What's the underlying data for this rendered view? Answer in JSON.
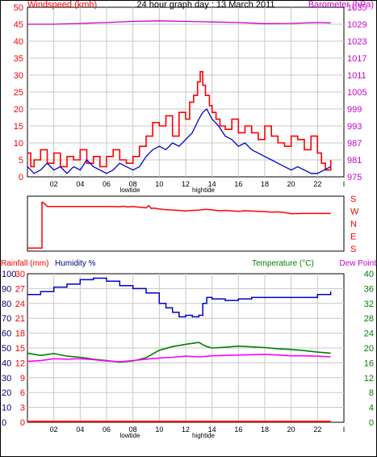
{
  "header": {
    "title": "24 hour graph day : 13 March 2011",
    "left_label": "Windspeed (kmh)",
    "right_label": "Barometer (hPa)"
  },
  "labels": {
    "lowtide": "lowtide",
    "hightide": "hightide",
    "rainfall": "Rainfall (mm)",
    "humidity": "Humidity %",
    "temperature": "Temperature (°C)",
    "dewpoint": "Dew Point"
  },
  "colors": {
    "wind": "#ff0000",
    "gust_dark": "#cc0000",
    "baro": "#cc00cc",
    "avg": "#0000cc",
    "temp": "#008000",
    "dew": "#ff00ff",
    "rain": "#ff0000",
    "humidity": "#0000cc",
    "frame": "#000000",
    "grid": "#c8c8c8",
    "hum_axis": "#000080"
  },
  "chart_data": [
    {
      "type": "line",
      "name": "wind-baro",
      "x_ticks": [
        "02",
        "04",
        "06",
        "08",
        "10",
        "12",
        "14",
        "16",
        "18",
        "20",
        "22",
        "I"
      ],
      "y_left_ticks": [
        "0",
        "5",
        "10",
        "15",
        "20",
        "25",
        "30",
        "35",
        "40",
        "45",
        "50"
      ],
      "y_left_range": [
        0,
        50
      ],
      "y_right_ticks": [
        "975",
        "981",
        "987",
        "993",
        "999",
        "1005",
        "1011",
        "1017",
        "1023",
        "1029",
        "1035"
      ],
      "y_right_range": [
        975,
        1035
      ],
      "x_range": [
        0,
        24
      ],
      "grid": true,
      "series": [
        {
          "key": "gust",
          "x": [
            0,
            0.25,
            0.5,
            1,
            1.5,
            2,
            2.5,
            3,
            3.5,
            4,
            4.5,
            5,
            5.5,
            6,
            6.5,
            7,
            7.5,
            8,
            8.5,
            9,
            9.5,
            10,
            10.5,
            11,
            11.5,
            12,
            12.3,
            12.6,
            12.9,
            13.1,
            13.3,
            13.5,
            13.8,
            14,
            14.3,
            14.6,
            15,
            15.5,
            16,
            16.5,
            17,
            17.5,
            18,
            18.5,
            19,
            19.5,
            20,
            20.5,
            21,
            21.5,
            22,
            22.3,
            22.6,
            23
          ],
          "values": [
            7,
            3,
            5,
            8,
            4,
            7,
            3,
            6,
            5,
            8,
            4,
            6,
            3,
            6,
            8,
            5,
            4,
            6,
            9,
            12,
            16,
            15,
            18,
            12,
            19,
            17,
            22,
            24,
            28,
            31,
            27,
            24,
            21,
            19,
            17,
            15,
            14,
            17,
            13,
            15,
            13,
            11,
            15,
            12,
            10,
            9,
            12,
            11,
            8,
            12,
            7,
            4,
            2,
            5
          ]
        },
        {
          "key": "average",
          "x": [
            0,
            0.5,
            1,
            1.5,
            2,
            2.5,
            3,
            3.5,
            4,
            4.5,
            5,
            5.5,
            6,
            6.5,
            7,
            7.5,
            8,
            8.5,
            9,
            9.5,
            10,
            10.5,
            11,
            11.5,
            12,
            12.5,
            13,
            13.3,
            13.6,
            14,
            14.5,
            15,
            15.5,
            16,
            16.5,
            17,
            17.5,
            18,
            18.5,
            19,
            19.5,
            20,
            20.5,
            21,
            21.5,
            22,
            22.5,
            23
          ],
          "values": [
            3,
            1,
            2,
            4,
            2,
            3,
            1,
            3,
            2,
            5,
            3,
            2,
            1,
            2,
            4,
            3,
            2,
            3,
            6,
            8,
            9,
            8,
            10,
            9,
            11,
            13,
            17,
            19,
            20,
            17,
            15,
            12,
            11,
            9,
            10,
            8,
            7,
            6,
            5,
            4,
            3,
            2,
            3,
            2,
            1,
            1,
            2,
            3
          ]
        },
        {
          "key": "barometer",
          "x": [
            0,
            2,
            4,
            6,
            8,
            10,
            12,
            14,
            16,
            18,
            20,
            22,
            23
          ],
          "values": [
            1029,
            1029,
            1029.3,
            1029.6,
            1030,
            1030.2,
            1030,
            1029.8,
            1029.6,
            1029.2,
            1029.3,
            1029.6,
            1029.5
          ]
        }
      ]
    },
    {
      "type": "line",
      "name": "wind-direction",
      "y_ticks": [
        "S",
        "E",
        "N",
        "W",
        "S"
      ],
      "y_range": [
        180,
        540
      ],
      "x_range": [
        0,
        24
      ],
      "series": [
        {
          "key": "direction",
          "x": [
            0,
            1.1,
            1.1,
            1.3,
            1.5,
            2,
            4,
            6,
            7,
            7.3,
            7.6,
            8,
            8.5,
            9,
            9.2,
            9.4,
            9.6,
            10,
            10.5,
            11,
            11.5,
            12,
            12.5,
            13,
            13.5,
            14,
            14.5,
            15,
            15.5,
            16,
            16.5,
            17,
            17.5,
            18,
            18.5,
            19,
            19.5,
            20,
            21,
            22,
            23
          ],
          "values": [
            190,
            190,
            510,
            500,
            480,
            480,
            480,
            480,
            478,
            481,
            477,
            479,
            475,
            470,
            486,
            466,
            468,
            462,
            458,
            455,
            452,
            449,
            452,
            454,
            460,
            456,
            450,
            452,
            449,
            446,
            450,
            448,
            446,
            444,
            440,
            442,
            437,
            430,
            431,
            431,
            431
          ]
        }
      ]
    },
    {
      "type": "line",
      "name": "temp-humidity-rain",
      "x_ticks": [
        "02",
        "04",
        "06",
        "08",
        "10",
        "12",
        "14",
        "16",
        "18",
        "20",
        "22",
        "I"
      ],
      "y_rain_ticks": [
        "0",
        "3",
        "6",
        "9",
        "12",
        "15",
        "18",
        "21",
        "24",
        "27",
        "30"
      ],
      "y_rain_range": [
        0,
        30
      ],
      "y_humidity_ticks": [
        "0",
        "10",
        "20",
        "30",
        "40",
        "50",
        "60",
        "70",
        "80",
        "90",
        "100"
      ],
      "y_humidity_range": [
        0,
        100
      ],
      "y_temp_ticks": [
        "0",
        "4",
        "8",
        "12",
        "16",
        "20",
        "24",
        "28",
        "32",
        "36",
        "40"
      ],
      "y_temp_range": [
        0,
        40
      ],
      "x_range": [
        0,
        24
      ],
      "grid": true,
      "series": [
        {
          "key": "humidity",
          "x": [
            0,
            1,
            2,
            3,
            4,
            5,
            6,
            7,
            8,
            9,
            10,
            10.5,
            11,
            11.5,
            12,
            12.5,
            13,
            13.3,
            13.6,
            14,
            15,
            16,
            17,
            18,
            19,
            20,
            21,
            22,
            23
          ],
          "values": [
            86,
            88,
            91,
            93,
            96,
            97,
            95,
            92,
            90,
            87,
            80,
            77,
            74,
            71,
            72,
            71,
            72,
            80,
            84,
            83,
            82,
            83,
            84,
            84,
            84,
            84,
            84,
            86,
            88
          ]
        },
        {
          "key": "temperature",
          "x": [
            0,
            1,
            2,
            3,
            4,
            5,
            6,
            7,
            8,
            9,
            10,
            11,
            12,
            13,
            13.5,
            14,
            15,
            16,
            17,
            18,
            19,
            20,
            21,
            22,
            23
          ],
          "values": [
            18.6,
            18,
            18.5,
            17.8,
            17.5,
            17,
            16.6,
            16.2,
            16.5,
            17.4,
            19.4,
            20.4,
            21,
            21.5,
            20.5,
            20,
            20.2,
            20.5,
            20.3,
            20.1,
            19.8,
            19.6,
            19.3,
            18.9,
            18.6
          ]
        },
        {
          "key": "dewpoint",
          "x": [
            0,
            1,
            2,
            3,
            4,
            5,
            6,
            7,
            8,
            9,
            10,
            11,
            12,
            13,
            14,
            15,
            16,
            17,
            18,
            19,
            20,
            21,
            22,
            23
          ],
          "values": [
            16.4,
            16.6,
            17.1,
            17,
            17.1,
            16.9,
            16.5,
            16.3,
            16.6,
            17,
            17.3,
            17.5,
            17.8,
            17.6,
            17.9,
            18,
            18.1,
            18.2,
            18.3,
            18.1,
            17.9,
            17.9,
            17.8,
            17.6
          ]
        },
        {
          "key": "rainfall",
          "x": [
            0,
            23
          ],
          "values": [
            0,
            0
          ]
        }
      ]
    }
  ]
}
